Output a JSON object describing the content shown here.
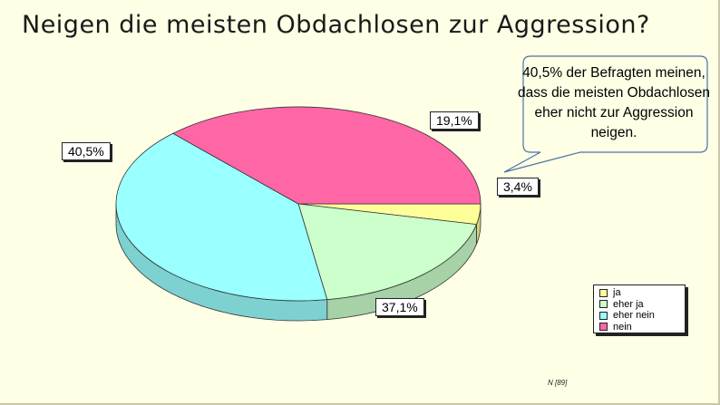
{
  "chart_data": {
    "type": "pie",
    "title": "Neigen die meisten Obdachlosen zur Aggression?",
    "categories": [
      "ja",
      "eher ja",
      "eher nein",
      "nein"
    ],
    "values": [
      3.4,
      19.1,
      40.5,
      37.1
    ],
    "value_labels": [
      "3,4%",
      "19,1%",
      "40,5%",
      "37,1%"
    ],
    "colors": [
      "#ffff99",
      "#ccffcc",
      "#99ffff",
      "#ff66a6"
    ],
    "legend_position": "bottom-right",
    "annotation": "40,5% der Befragten meinen, dass die meisten Obdachlosen eher nicht zur Aggression neigen.",
    "note": "N [89]"
  }
}
